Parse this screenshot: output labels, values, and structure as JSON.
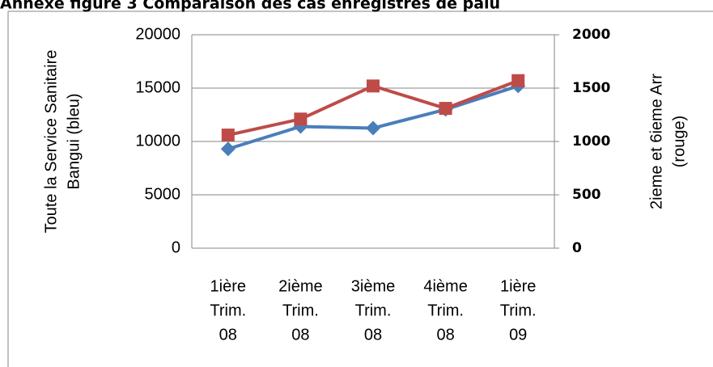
{
  "chart_data": {
    "type": "line",
    "title": "Annexe figure 3 Comparaison des cas enregistres de palu",
    "ylabel": [
      "Toute la Service Sanitaire",
      "Bangui (bleu)"
    ],
    "y2label": [
      "2ieme et 6ieme Arr",
      "(rouge)"
    ],
    "categories": [
      [
        "1ière",
        "Trim.",
        "08"
      ],
      [
        "2ième",
        "Trim.",
        "08"
      ],
      [
        "3ième",
        "Trim.",
        "08"
      ],
      [
        "4ième",
        "Trim.",
        "08"
      ],
      [
        "1ière",
        "Trim.",
        "09"
      ]
    ],
    "series": [
      {
        "name": "Toute la Service Sanitaire Bangui",
        "color": "#4a7ebb",
        "marker": "diamond",
        "axis": "y",
        "values": [
          9300,
          11400,
          11250,
          13000,
          15200
        ]
      },
      {
        "name": "2ieme et 6ieme Arr",
        "color": "#be4b48",
        "marker": "square",
        "axis": "y2",
        "values": [
          1060,
          1210,
          1520,
          1310,
          1570
        ]
      }
    ],
    "ylim": [
      0,
      20000
    ],
    "yticks": [
      0,
      5000,
      10000,
      15000,
      20000
    ],
    "y2lim": [
      0,
      2000
    ],
    "y2ticks": [
      0,
      500,
      1000,
      1500,
      2000
    ],
    "grid": true
  }
}
